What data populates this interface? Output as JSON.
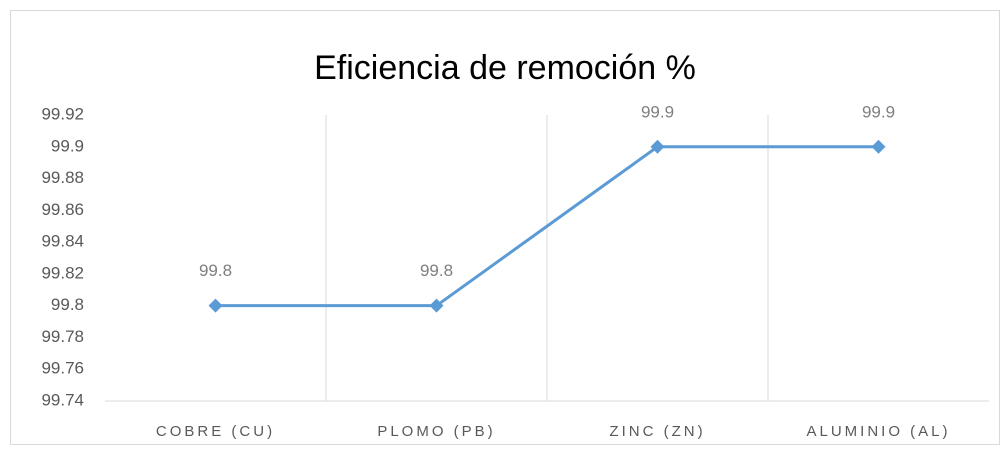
{
  "chart_data": {
    "type": "line",
    "title": "Eficiencia de remoción %",
    "categories": [
      "COBRE (CU)",
      "PLOMO (PB)",
      "ZINC (ZN)",
      "ALUMINIO (AL)"
    ],
    "values": [
      99.8,
      99.8,
      99.9,
      99.9
    ],
    "color": "#5b9bd5",
    "ylim": [
      99.74,
      99.92
    ],
    "yticks": [
      99.74,
      99.76,
      99.78,
      99.8,
      99.82,
      99.84,
      99.86,
      99.88,
      99.9,
      99.92
    ],
    "data_labels": true,
    "vertical_grid": true
  }
}
